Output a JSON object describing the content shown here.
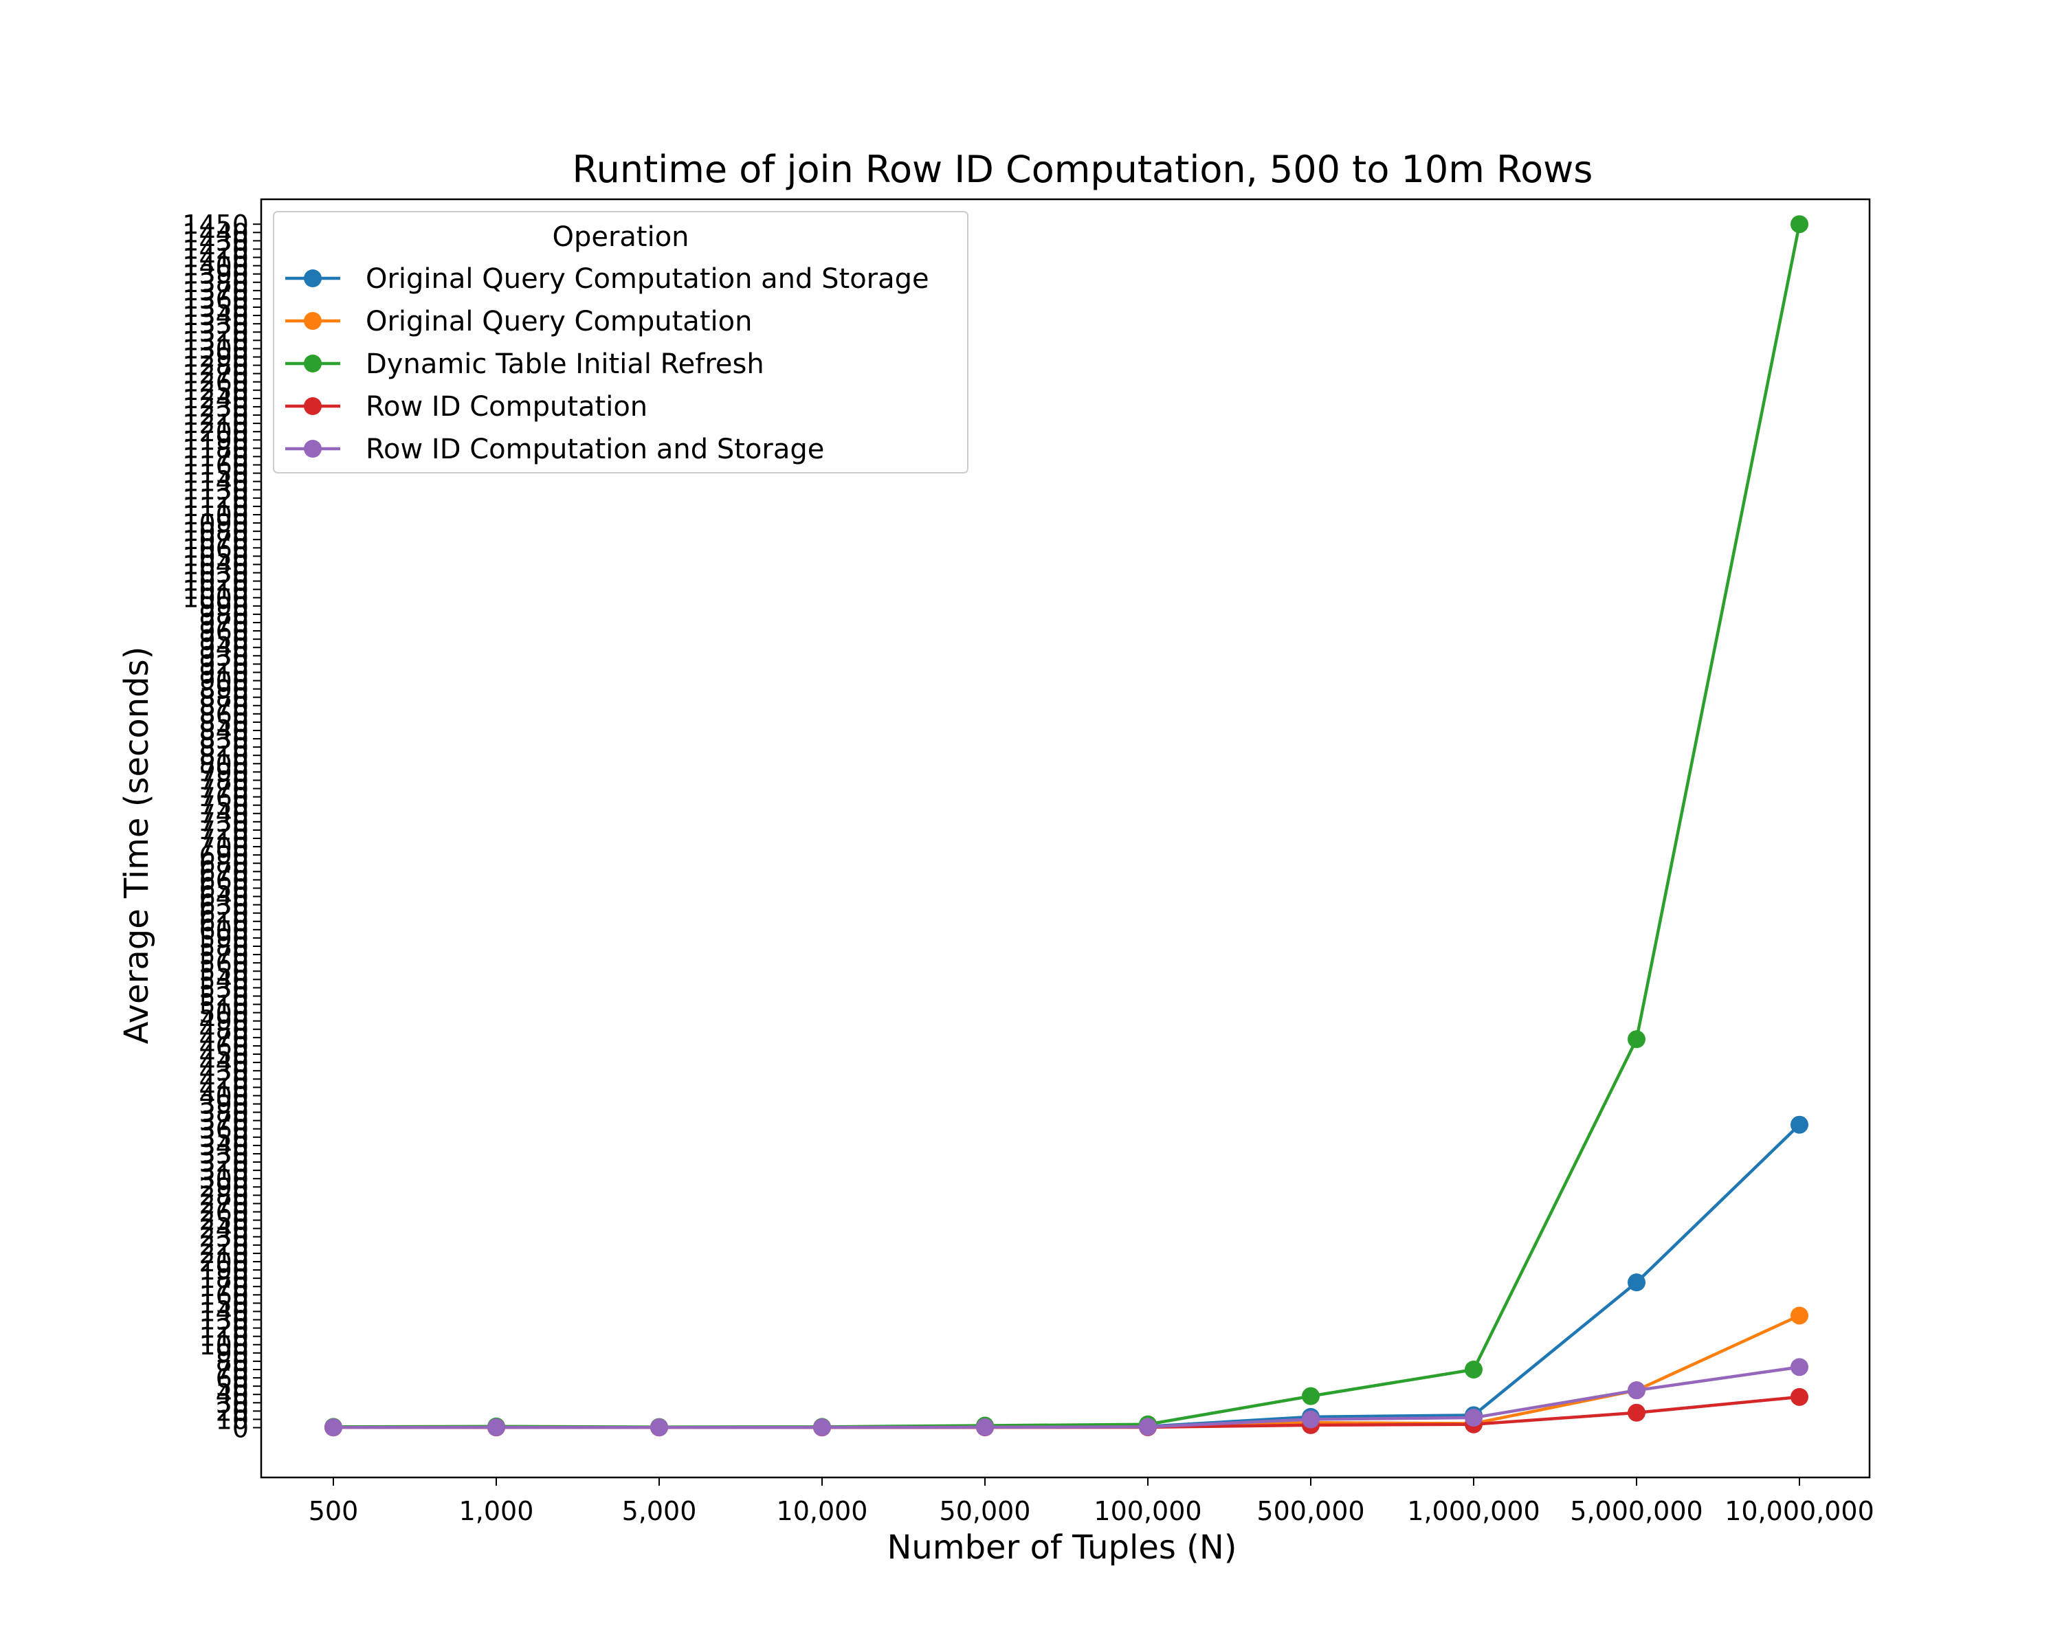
{
  "chart_data": {
    "type": "line",
    "title": "Runtime of join Row ID Computation, 500 to 10m Rows",
    "xlabel": "Number of Tuples (N)",
    "ylabel": "Average Time (seconds)",
    "categories": [
      "500",
      "1,000",
      "5,000",
      "10,000",
      "50,000",
      "100,000",
      "500,000",
      "1,000,000",
      "5,000,000",
      "10,000,000"
    ],
    "ylim": [
      -60,
      1480
    ],
    "yticks": [
      0,
      10,
      20,
      30,
      40,
      50,
      60,
      70,
      80,
      90,
      100,
      110,
      120,
      130,
      140,
      150,
      160,
      170,
      180,
      190,
      200,
      210,
      220,
      230,
      240,
      250,
      260,
      270,
      280,
      290,
      300,
      310,
      320,
      330,
      340,
      350,
      360,
      370,
      380,
      390,
      400,
      410,
      420,
      430,
      440,
      450,
      460,
      470,
      480,
      490,
      500,
      510,
      520,
      530,
      540,
      550,
      560,
      570,
      580,
      590,
      600,
      610,
      620,
      630,
      640,
      650,
      660,
      670,
      680,
      690,
      700,
      710,
      720,
      730,
      740,
      750,
      760,
      770,
      780,
      790,
      800,
      810,
      820,
      830,
      840,
      850,
      860,
      870,
      880,
      890,
      900,
      910,
      920,
      930,
      940,
      950,
      960,
      970,
      980,
      990,
      1000,
      1010,
      1020,
      1030,
      1040,
      1050,
      1060,
      1070,
      1080,
      1090,
      1100,
      1110,
      1120,
      1130,
      1140,
      1150,
      1160,
      1170,
      1180,
      1190,
      1200,
      1210,
      1220,
      1230,
      1240,
      1250,
      1260,
      1270,
      1280,
      1290,
      1300,
      1310,
      1320,
      1330,
      1340,
      1350,
      1360,
      1370,
      1380,
      1390,
      1400,
      1410,
      1420,
      1430,
      1440,
      1450
    ],
    "grid": false,
    "legend": {
      "title": "Operation",
      "position": "top-left"
    },
    "series": [
      {
        "name": "Original Query Computation and Storage",
        "color": "#1f77b4",
        "values": [
          0.5,
          0.8,
          0.5,
          0.6,
          0.8,
          1.5,
          13,
          15,
          175,
          365
        ]
      },
      {
        "name": "Original Query Computation",
        "color": "#ff7f0e",
        "values": [
          0.3,
          0.4,
          0.4,
          0.4,
          0.5,
          0.8,
          6,
          5,
          45,
          135
        ]
      },
      {
        "name": "Dynamic Table Initial Refresh",
        "color": "#2ca02c",
        "values": [
          1,
          1.5,
          0.8,
          1,
          2.5,
          4,
          38,
          70,
          468,
          1450
        ]
      },
      {
        "name": "Row ID Computation",
        "color": "#d62728",
        "values": [
          0.2,
          0.2,
          0.2,
          0.2,
          0.3,
          0.5,
          3,
          4,
          18,
          37
        ]
      },
      {
        "name": "Row ID Computation and Storage",
        "color": "#9467bd",
        "values": [
          0.3,
          0.4,
          0.3,
          0.4,
          0.5,
          1,
          10,
          12,
          45,
          73
        ]
      }
    ]
  }
}
